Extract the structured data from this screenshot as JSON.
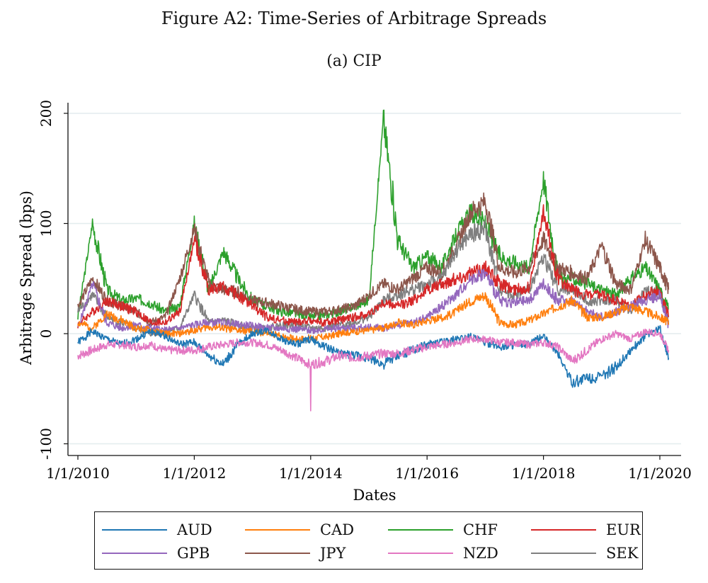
{
  "figure_title": "Figure A2: Time-Series of Arbitrage Spreads",
  "panel_caption": "(a) CIP",
  "chart_data": {
    "type": "line",
    "title": "(a) CIP",
    "xlabel": "Dates",
    "ylabel": "Arbitrage Spread (bps)",
    "xlim": [
      2010.0,
      2020.3
    ],
    "ylim": [
      -108,
      208
    ],
    "grid": true,
    "legend_position": "bottom",
    "x_ticks": [
      {
        "value": 2010,
        "label": "1/1/2010"
      },
      {
        "value": 2012,
        "label": "1/1/2012"
      },
      {
        "value": 2014,
        "label": "1/1/2014"
      },
      {
        "value": 2016,
        "label": "1/1/2016"
      },
      {
        "value": 2018,
        "label": "1/1/2018"
      },
      {
        "value": 2020,
        "label": "1/1/2020"
      }
    ],
    "y_ticks": [
      {
        "value": -100,
        "label": "-100"
      },
      {
        "value": 0,
        "label": "0"
      },
      {
        "value": 100,
        "label": "100"
      },
      {
        "value": 200,
        "label": "200"
      }
    ],
    "x": [
      2010.0,
      2010.25,
      2010.5,
      2010.75,
      2011.0,
      2011.25,
      2011.5,
      2011.75,
      2012.0,
      2012.25,
      2012.5,
      2012.75,
      2013.0,
      2013.25,
      2013.5,
      2013.75,
      2014.0,
      2014.25,
      2014.5,
      2014.75,
      2015.0,
      2015.25,
      2015.5,
      2015.75,
      2016.0,
      2016.25,
      2016.5,
      2016.75,
      2017.0,
      2017.25,
      2017.5,
      2017.75,
      2018.0,
      2018.25,
      2018.5,
      2018.75,
      2019.0,
      2019.25,
      2019.5,
      2019.75,
      2020.0,
      2020.15
    ],
    "series": [
      {
        "name": "AUD",
        "color": "#1f77b4",
        "values": [
          -8,
          2,
          -5,
          -10,
          -5,
          2,
          -2,
          -10,
          -8,
          -20,
          -28,
          -10,
          0,
          3,
          -5,
          -10,
          -5,
          -12,
          -18,
          -20,
          -22,
          -28,
          -20,
          -15,
          -10,
          -8,
          -5,
          -2,
          -8,
          -12,
          -10,
          -10,
          -2,
          -18,
          -45,
          -40,
          -40,
          -30,
          -15,
          -2,
          5,
          -22
        ]
      },
      {
        "name": "CAD",
        "color": "#ff7f0e",
        "values": [
          10,
          5,
          18,
          12,
          5,
          3,
          0,
          0,
          3,
          6,
          5,
          3,
          2,
          0,
          -2,
          -5,
          -4,
          -3,
          0,
          2,
          3,
          5,
          10,
          8,
          12,
          14,
          20,
          30,
          35,
          10,
          8,
          12,
          18,
          25,
          30,
          15,
          15,
          20,
          25,
          20,
          15,
          10
        ]
      },
      {
        "name": "CHF",
        "color": "#2ca02c",
        "values": [
          15,
          100,
          40,
          30,
          32,
          28,
          20,
          25,
          100,
          40,
          75,
          50,
          30,
          25,
          20,
          18,
          15,
          17,
          20,
          25,
          30,
          195,
          85,
          60,
          70,
          60,
          90,
          110,
          100,
          70,
          65,
          60,
          140,
          50,
          50,
          45,
          40,
          35,
          50,
          60,
          40,
          22
        ]
      },
      {
        "name": "EUR",
        "color": "#d62728",
        "values": [
          8,
          20,
          30,
          25,
          20,
          10,
          10,
          20,
          85,
          40,
          42,
          35,
          25,
          15,
          12,
          10,
          12,
          10,
          12,
          15,
          18,
          28,
          25,
          30,
          40,
          45,
          50,
          55,
          60,
          45,
          40,
          42,
          110,
          50,
          40,
          35,
          35,
          30,
          25,
          35,
          40,
          15
        ]
      },
      {
        "name": "GPB",
        "color": "#9467bd",
        "values": [
          5,
          45,
          10,
          5,
          8,
          5,
          3,
          5,
          8,
          10,
          10,
          8,
          7,
          5,
          5,
          4,
          3,
          4,
          5,
          5,
          6,
          5,
          8,
          10,
          15,
          25,
          35,
          50,
          55,
          30,
          28,
          30,
          45,
          30,
          30,
          20,
          15,
          20,
          25,
          30,
          35,
          8
        ]
      },
      {
        "name": "JPY",
        "color": "#8c564b",
        "values": [
          25,
          50,
          30,
          25,
          20,
          10,
          15,
          50,
          95,
          45,
          40,
          38,
          30,
          28,
          25,
          22,
          20,
          20,
          22,
          25,
          35,
          45,
          40,
          50,
          60,
          55,
          80,
          110,
          120,
          60,
          55,
          60,
          85,
          60,
          55,
          50,
          80,
          45,
          40,
          85,
          60,
          40
        ]
      },
      {
        "name": "NZD",
        "color": "#e377c2",
        "values": [
          -20,
          -15,
          -10,
          -10,
          -12,
          -10,
          -15,
          -15,
          -15,
          -12,
          -10,
          -8,
          -8,
          -10,
          -15,
          -22,
          -28,
          -25,
          -20,
          -22,
          -20,
          -18,
          -18,
          -15,
          -12,
          -10,
          -8,
          -5,
          -5,
          -8,
          -8,
          -10,
          -8,
          -12,
          -25,
          -15,
          -5,
          0,
          -5,
          2,
          0,
          -15
        ]
      },
      {
        "name": "SEK",
        "color": "#7f7f7f",
        "values": [
          20,
          35,
          15,
          10,
          5,
          0,
          2,
          5,
          35,
          10,
          12,
          8,
          5,
          5,
          8,
          8,
          5,
          5,
          8,
          10,
          15,
          30,
          35,
          40,
          45,
          50,
          75,
          90,
          95,
          40,
          35,
          40,
          70,
          40,
          40,
          30,
          30,
          30,
          20,
          40,
          35,
          12
        ]
      }
    ],
    "annotations": [
      {
        "series": "NZD",
        "x": 2014.0,
        "y": -70,
        "note": "sharp dip"
      }
    ]
  }
}
